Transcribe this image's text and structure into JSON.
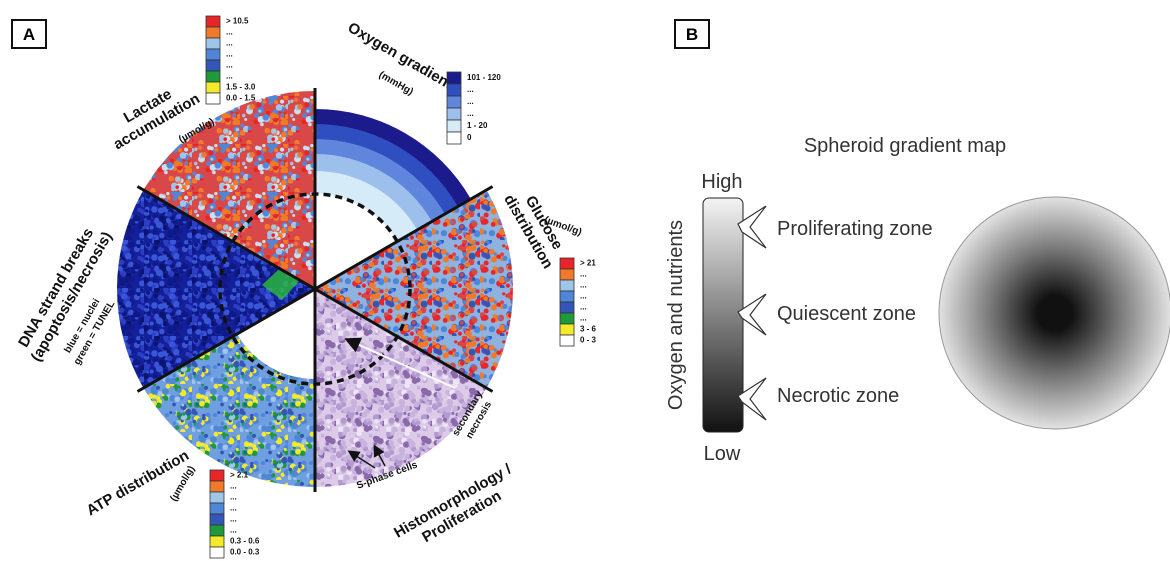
{
  "panel_a": {
    "label": "A",
    "lactate": {
      "title": [
        "Lactate",
        "accumulation"
      ],
      "unit": "(µmol/g)",
      "legend": [
        {
          "label": "> 10.5",
          "color": "#e8262a"
        },
        {
          "label": "...",
          "color": "#f07a2a"
        },
        {
          "label": "...",
          "color": "#9fc6e8"
        },
        {
          "label": "...",
          "color": "#4f86d8"
        },
        {
          "label": "...",
          "color": "#3456b8"
        },
        {
          "label": "...",
          "color": "#1f9a3a"
        },
        {
          "label": "1.5 - 3.0",
          "color": "#f2ea2a"
        },
        {
          "label": "0.0 - 1.5",
          "color": "#ffffff"
        }
      ]
    },
    "oxygen": {
      "title": [
        "Oxygen gradient"
      ],
      "unit": "(mmHg)",
      "legend": [
        {
          "label": "101 - 120",
          "color": "#1b1b8c"
        },
        {
          "label": "...",
          "color": "#2f4fc0"
        },
        {
          "label": "...",
          "color": "#5f86dc"
        },
        {
          "label": "...",
          "color": "#9dbfec"
        },
        {
          "label": "1 - 20",
          "color": "#d6ebf8"
        },
        {
          "label": "0",
          "color": "#ffffff"
        }
      ]
    },
    "glucose": {
      "title": [
        "Glucose",
        "distribution"
      ],
      "unit": "(µmol/g)",
      "legend": [
        {
          "label": "> 21",
          "color": "#e8262a"
        },
        {
          "label": "...",
          "color": "#f07a2a"
        },
        {
          "label": "...",
          "color": "#9fc6e8"
        },
        {
          "label": "...",
          "color": "#4f86d8"
        },
        {
          "label": "...",
          "color": "#3456b8"
        },
        {
          "label": "...",
          "color": "#1f9a3a"
        },
        {
          "label": "3 - 6",
          "color": "#f2ea2a"
        },
        {
          "label": "0 - 3",
          "color": "#ffffff"
        }
      ]
    },
    "dna": {
      "title": [
        "DNA strand breaks",
        "(apoptosis/necrosis)"
      ],
      "notes": [
        "blue = nuclei",
        "green = TUNEL"
      ]
    },
    "atp": {
      "title": [
        "ATP distribution"
      ],
      "unit": "(µmol/g)",
      "legend": [
        {
          "label": "> 2.1",
          "color": "#e8262a"
        },
        {
          "label": "...",
          "color": "#f07a2a"
        },
        {
          "label": "...",
          "color": "#9fc6e8"
        },
        {
          "label": "...",
          "color": "#4f86d8"
        },
        {
          "label": "...",
          "color": "#3456b8"
        },
        {
          "label": "...",
          "color": "#1f9a3a"
        },
        {
          "label": "0.3 - 0.6",
          "color": "#f2ea2a"
        },
        {
          "label": "0.0 - 0.3",
          "color": "#ffffff"
        }
      ]
    },
    "histo": {
      "title": [
        "Histomorphology /",
        "Proliferation"
      ],
      "secondary_necrosis": [
        "secondary",
        "necrosis"
      ],
      "s_phase": "S-phase cells"
    }
  },
  "panel_b": {
    "label": "B",
    "title": "Spheroid gradient map",
    "axis": "Oxygen and nutrients",
    "high": "High",
    "low": "Low",
    "zones": [
      "Proliferating zone",
      "Quiescent zone",
      "Necrotic zone"
    ]
  }
}
